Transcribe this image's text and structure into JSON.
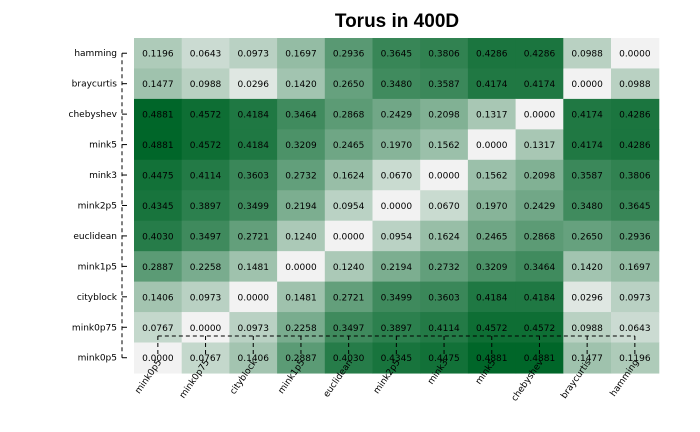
{
  "chart_data": {
    "type": "heatmap",
    "title": "Torus in 400D",
    "columns": [
      "mink0p5",
      "mink0p75",
      "cityblock",
      "mink1p5",
      "euclidean",
      "mink2p5",
      "mink3",
      "mink5",
      "chebyshev",
      "braycurtis",
      "hamming"
    ],
    "rows": [
      "hamming",
      "braycurtis",
      "chebyshev",
      "mink5",
      "mink3",
      "mink2p5",
      "euclidean",
      "mink1p5",
      "cityblock",
      "mink0p75",
      "mink0p5"
    ],
    "values": [
      [
        "0.1196",
        "0.0643",
        "0.0973",
        "0.1697",
        "0.2936",
        "0.3645",
        "0.3806",
        "0.4286",
        "0.4286",
        "0.0988",
        "0.0000"
      ],
      [
        "0.1477",
        "0.0988",
        "0.0296",
        "0.1420",
        "0.2650",
        "0.3480",
        "0.3587",
        "0.4174",
        "0.4174",
        "0.0000",
        "0.0988"
      ],
      [
        "0.4881",
        "0.4572",
        "0.4184",
        "0.3464",
        "0.2868",
        "0.2429",
        "0.2098",
        "0.1317",
        "0.0000",
        "0.4174",
        "0.4286"
      ],
      [
        "0.4881",
        "0.4572",
        "0.4184",
        "0.3209",
        "0.2465",
        "0.1970",
        "0.1562",
        "0.0000",
        "0.1317",
        "0.4174",
        "0.4286"
      ],
      [
        "0.4475",
        "0.4114",
        "0.3603",
        "0.2732",
        "0.1624",
        "0.0670",
        "0.0000",
        "0.1562",
        "0.2098",
        "0.3587",
        "0.3806"
      ],
      [
        "0.4345",
        "0.3897",
        "0.3499",
        "0.2194",
        "0.0954",
        "0.0000",
        "0.0670",
        "0.1970",
        "0.2429",
        "0.3480",
        "0.3645"
      ],
      [
        "0.4030",
        "0.3497",
        "0.2721",
        "0.1240",
        "0.0000",
        "0.0954",
        "0.1624",
        "0.2465",
        "0.2868",
        "0.2650",
        "0.2936"
      ],
      [
        "0.2887",
        "0.2258",
        "0.1481",
        "0.0000",
        "0.1240",
        "0.2194",
        "0.2732",
        "0.3209",
        "0.3464",
        "0.1420",
        "0.1697"
      ],
      [
        "0.1406",
        "0.0973",
        "0.0000",
        "0.1481",
        "0.2721",
        "0.3499",
        "0.3603",
        "0.4184",
        "0.4184",
        "0.0296",
        "0.0973"
      ],
      [
        "0.0767",
        "0.0000",
        "0.0973",
        "0.2258",
        "0.3497",
        "0.3897",
        "0.4114",
        "0.4572",
        "0.4572",
        "0.0988",
        "0.0643"
      ],
      [
        "0.0000",
        "0.0767",
        "0.1406",
        "0.2887",
        "0.4030",
        "0.4345",
        "0.4475",
        "0.4881",
        "0.4881",
        "0.1477",
        "0.1196"
      ]
    ],
    "color_low": "#f2f2f2",
    "color_high": "#006629",
    "value_range": [
      0,
      0.4881
    ],
    "legend": "none",
    "grid": false
  }
}
